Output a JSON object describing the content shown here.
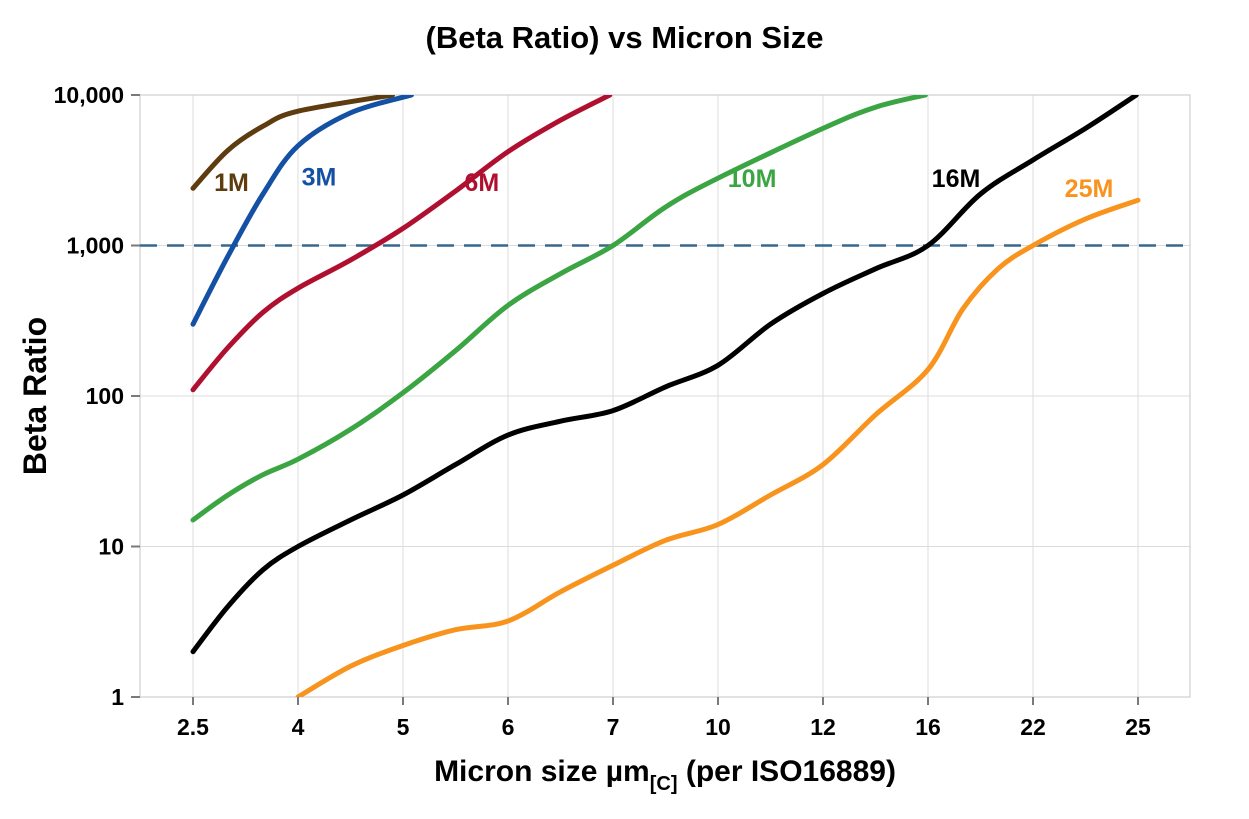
{
  "chart_data": {
    "type": "line",
    "title": "(Beta Ratio) vs Micron Size",
    "ylabel": "Beta Ratio",
    "xlabel_main": "Micron size µm",
    "xlabel_sub": "[C]",
    "xlabel_rest": " (per ISO16889)",
    "x_categories": [
      2.5,
      4,
      5,
      6,
      7,
      10,
      12,
      16,
      22,
      25
    ],
    "x_tick_labels": [
      "2.5",
      "4",
      "5",
      "6",
      "7",
      "10",
      "12",
      "16",
      "22",
      "25"
    ],
    "y_scale": "log",
    "ylim": [
      1,
      10000
    ],
    "y_ticks": [
      1,
      10,
      100,
      1000,
      10000
    ],
    "y_tick_labels": [
      "1",
      "10",
      "100",
      "1,000",
      "10,000"
    ],
    "grid": true,
    "grid_color": "#dcdcdc",
    "legend_position": "inline-labels",
    "reference_line": {
      "value": 1000,
      "style": "dashed",
      "color": "#36688f"
    },
    "series": [
      {
        "name": "1M",
        "color": "#5e3c10",
        "label_at": [
          3.05,
          2300
        ],
        "points": [
          [
            2.5,
            2400
          ],
          [
            3,
            4300
          ],
          [
            3.5,
            6200
          ],
          [
            4,
            7800
          ],
          [
            4.9,
            10000
          ]
        ]
      },
      {
        "name": "3M",
        "color": "#1450a4",
        "label_at": [
          4.2,
          2500
        ],
        "points": [
          [
            2.5,
            300
          ],
          [
            3,
            850
          ],
          [
            3.5,
            2200
          ],
          [
            4,
            4600
          ],
          [
            4.5,
            7600
          ],
          [
            5.08,
            10000
          ]
        ]
      },
      {
        "name": "6M",
        "color": "#b01030",
        "label_at": [
          5.75,
          2300
        ],
        "points": [
          [
            2.5,
            110
          ],
          [
            3,
            210
          ],
          [
            3.5,
            360
          ],
          [
            4,
            520
          ],
          [
            4.5,
            800
          ],
          [
            5,
            1300
          ],
          [
            5.5,
            2300
          ],
          [
            6,
            4200
          ],
          [
            6.5,
            6800
          ],
          [
            6.97,
            10000
          ]
        ]
      },
      {
        "name": "10M",
        "color": "#3aa542",
        "label_at": [
          10.65,
          2450
        ],
        "points": [
          [
            2.5,
            15
          ],
          [
            3,
            22
          ],
          [
            3.5,
            30
          ],
          [
            4,
            38
          ],
          [
            4.5,
            60
          ],
          [
            5,
            105
          ],
          [
            5.5,
            200
          ],
          [
            6,
            400
          ],
          [
            6.5,
            650
          ],
          [
            7,
            1000
          ],
          [
            8.5,
            1800
          ],
          [
            10,
            2800
          ],
          [
            12,
            6000
          ],
          [
            14,
            8300
          ],
          [
            15.9,
            10000
          ]
        ]
      },
      {
        "name": "16M",
        "color": "#000000",
        "label_at": [
          17.6,
          2450
        ],
        "points": [
          [
            2.5,
            2
          ],
          [
            3,
            4
          ],
          [
            3.5,
            7
          ],
          [
            4,
            10
          ],
          [
            4.5,
            15
          ],
          [
            5,
            22
          ],
          [
            5.5,
            35
          ],
          [
            6,
            55
          ],
          [
            6.5,
            68
          ],
          [
            7,
            80
          ],
          [
            8.5,
            115
          ],
          [
            10,
            160
          ],
          [
            11,
            300
          ],
          [
            12,
            480
          ],
          [
            14,
            700
          ],
          [
            16,
            1000
          ],
          [
            19,
            2200
          ],
          [
            22,
            3700
          ],
          [
            23.5,
            6000
          ],
          [
            24.95,
            10000
          ]
        ]
      },
      {
        "name": "25M",
        "color": "#f8941e",
        "label_at": [
          23.6,
          2100
        ],
        "points": [
          [
            4,
            1
          ],
          [
            4.5,
            1.6
          ],
          [
            5,
            2.2
          ],
          [
            5.5,
            2.8
          ],
          [
            6,
            3.2
          ],
          [
            6.5,
            5
          ],
          [
            7,
            7.5
          ],
          [
            8.5,
            11
          ],
          [
            10,
            14
          ],
          [
            11,
            22
          ],
          [
            12,
            35
          ],
          [
            14,
            75
          ],
          [
            16,
            150
          ],
          [
            18,
            380
          ],
          [
            20,
            700
          ],
          [
            22,
            1000
          ],
          [
            23.5,
            1500
          ],
          [
            25,
            2000
          ]
        ]
      }
    ]
  }
}
